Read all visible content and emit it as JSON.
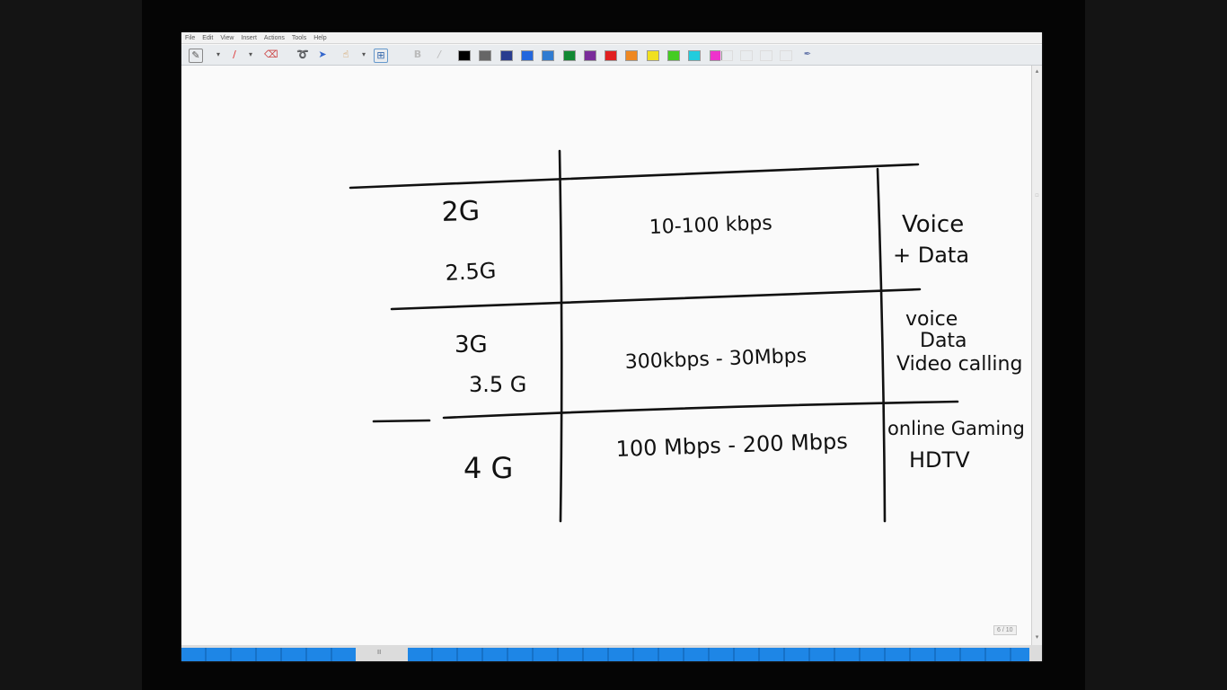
{
  "menu": [
    "File",
    "Edit",
    "View",
    "Insert",
    "Actions",
    "Tools",
    "Help"
  ],
  "toolbar": {
    "tools": [
      {
        "icon": "pen-icon",
        "glyph": "✎"
      },
      {
        "icon": "dropdown-icon",
        "glyph": "▾"
      },
      {
        "icon": "highlighter-icon",
        "glyph": "∕"
      },
      {
        "icon": "dropdown-icon",
        "glyph": "▾"
      },
      {
        "icon": "eraser-icon",
        "glyph": "⌫"
      },
      {
        "icon": "lasso-icon",
        "glyph": "➰"
      },
      {
        "icon": "pointer-icon",
        "glyph": "➤"
      },
      {
        "icon": "hand-icon",
        "glyph": "☝"
      },
      {
        "icon": "dropdown-icon",
        "glyph": "▾"
      },
      {
        "icon": "insert-space-icon",
        "glyph": "⊞"
      }
    ],
    "bold_label": "B",
    "italic_label": "/",
    "colors": [
      "#000000",
      "#666666",
      "#2a3d8f",
      "#2266dd",
      "#2f7bd1",
      "#118833",
      "#7a2c9a",
      "#e02020",
      "#ee8822",
      "#f0e020",
      "#44cc22",
      "#22ccdd",
      "#ee33cc"
    ]
  },
  "whiteboard": {
    "rows": [
      {
        "generation": [
          "2G",
          "2.5G"
        ],
        "speed": "10-100 kbps",
        "uses": [
          "Voice",
          "+ Data"
        ]
      },
      {
        "generation": [
          "3G",
          "3.5 G"
        ],
        "speed": "300kbps - 30Mbps",
        "uses": [
          "voice",
          "Data",
          "Video calling"
        ]
      },
      {
        "generation": [
          "4 G"
        ],
        "speed": "100 Mbps - 200 Mbps",
        "uses": [
          "online Gaming",
          "HDTV"
        ]
      }
    ]
  },
  "page_indicator": "6 / 10",
  "strip_gap_label": "II"
}
